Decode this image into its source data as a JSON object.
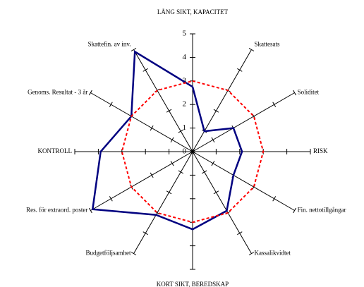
{
  "chart_data": {
    "type": "radar",
    "categories": [
      "LÅNG SIKT, KAPACITET",
      "Skattesats",
      "Soliditet",
      "RISK",
      "Fin. nettotillgångar",
      "Kassalikvidtet",
      "KORT SIKT, BEREDSKAP",
      "Budgetföljsamhet",
      "Res. för extraord. poster",
      "KONTROLL",
      "Genoms. Resultat - 3 år",
      "Skattefin. av inv."
    ],
    "series": [
      {
        "color": "#000080",
        "style": "solid",
        "values": [
          2.75,
          1.0,
          2.0,
          2.1,
          2.0,
          2.9,
          3.3,
          3.1,
          4.9,
          3.9,
          3.0,
          4.9
        ]
      },
      {
        "color": "#ff0000",
        "style": "dashed",
        "values": [
          3,
          3,
          3,
          3,
          3,
          3,
          3,
          3,
          3,
          3,
          3,
          3
        ]
      }
    ],
    "ylim": [
      0,
      5
    ],
    "yticks": [
      0,
      1,
      2,
      3,
      4,
      5
    ]
  }
}
